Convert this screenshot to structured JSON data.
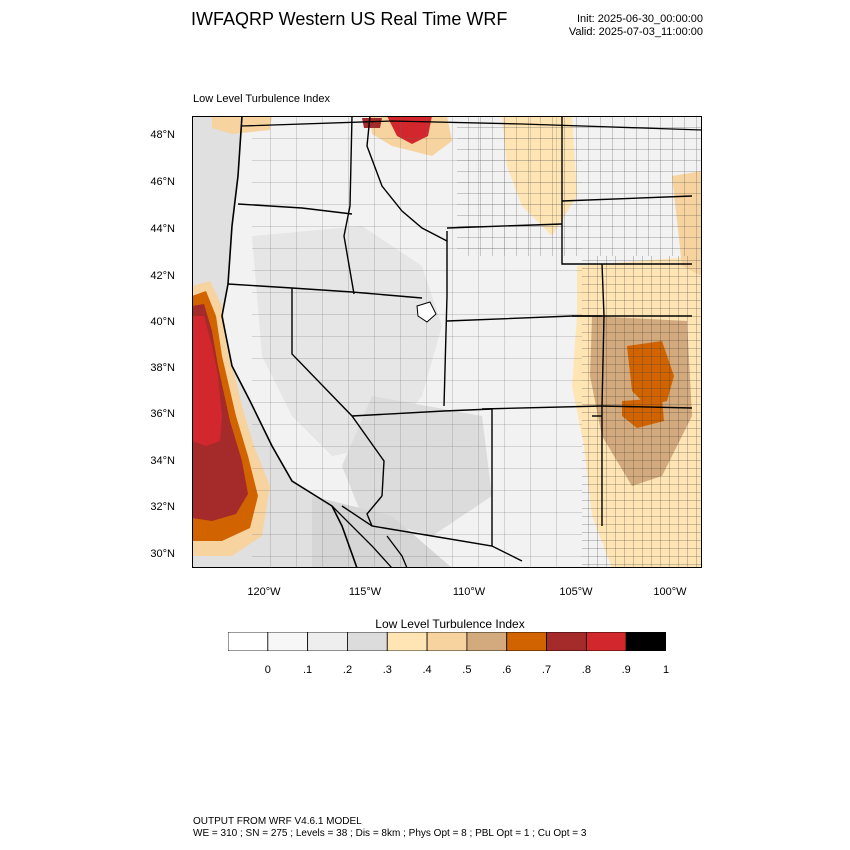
{
  "header": {
    "title": "IWFAQRP Western US Real Time WRF",
    "init": "Init: 2025-06-30_00:00:00",
    "valid": "Valid: 2025-07-03_11:00:00"
  },
  "map": {
    "subtitle": "Low Level Turbulence Index",
    "lat_labels": [
      "48°N",
      "46°N",
      "44°N",
      "42°N",
      "40°N",
      "38°N",
      "36°N",
      "34°N",
      "32°N",
      "30°N"
    ],
    "lon_labels": [
      "120°W",
      "115°W",
      "110°W",
      "105°W",
      "100°W"
    ],
    "features": [
      "high turbulence (0.8–1) off the California coast",
      "moderate turbulence (0.6–0.7) over Kansas / Oklahoma plains",
      "elevated values (0.8–0.9) in northern Montana"
    ]
  },
  "colorbar": {
    "title": "Low Level Turbulence Index",
    "labels": [
      "0",
      ".1",
      ".2",
      ".3",
      ".4",
      ".5",
      ".6",
      ".7",
      ".8",
      ".9",
      "1"
    ],
    "colors": [
      "#ffffff",
      "#f7f7f7",
      "#eeeeee",
      "#dcdcdc",
      "#ffe4b4",
      "#f7d39f",
      "#d2aa7d",
      "#d26400",
      "#a52a2a",
      "#d2282d",
      "#000000"
    ]
  },
  "footer": {
    "line1": "OUTPUT FROM WRF V4.6.1 MODEL",
    "line2": "WE = 310 ; SN = 275 ; Levels = 38 ; Dis = 8km ; Phys Opt = 8 ; PBL Opt = 1 ; Cu Opt = 3"
  }
}
